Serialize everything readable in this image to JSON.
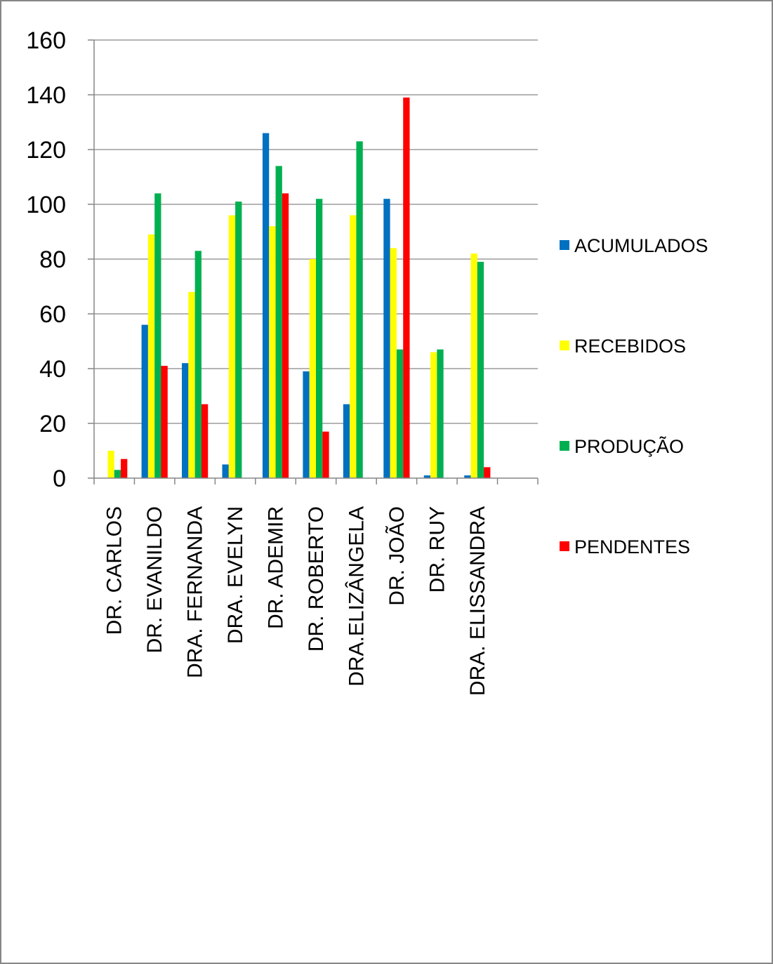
{
  "chart_data": {
    "type": "bar",
    "title": "",
    "xlabel": "",
    "ylabel": "",
    "ylim": [
      0,
      160
    ],
    "yticks": [
      0,
      20,
      40,
      60,
      80,
      100,
      120,
      140,
      160
    ],
    "grid": true,
    "legend_position": "right",
    "categories": [
      "DR. CARLOS",
      "DR. EVANILDO",
      "DRA. FERNANDA",
      "DRA. EVELYN",
      "DR. ADEMIR",
      "DR. ROBERTO",
      "DRA.ELIZÂNGELA",
      "DR. JOÃO",
      "DR. RUY",
      "DRA. ELISSANDRA",
      ""
    ],
    "series": [
      {
        "name": "ACUMULADOS",
        "color": "#0070C0",
        "values": [
          0,
          56,
          42,
          5,
          126,
          39,
          27,
          102,
          1,
          1,
          0
        ]
      },
      {
        "name": "RECEBIDOS",
        "color": "#FFFF00",
        "values": [
          10,
          89,
          68,
          96,
          92,
          80,
          96,
          84,
          46,
          82,
          0
        ]
      },
      {
        "name": "PRODUÇÃO",
        "color": "#00B050",
        "values": [
          3,
          104,
          83,
          101,
          114,
          102,
          123,
          47,
          47,
          79,
          0
        ]
      },
      {
        "name": "PENDENTES",
        "color": "#FF0000",
        "values": [
          7,
          41,
          27,
          0,
          104,
          17,
          0,
          139,
          0,
          4,
          0
        ]
      }
    ]
  }
}
